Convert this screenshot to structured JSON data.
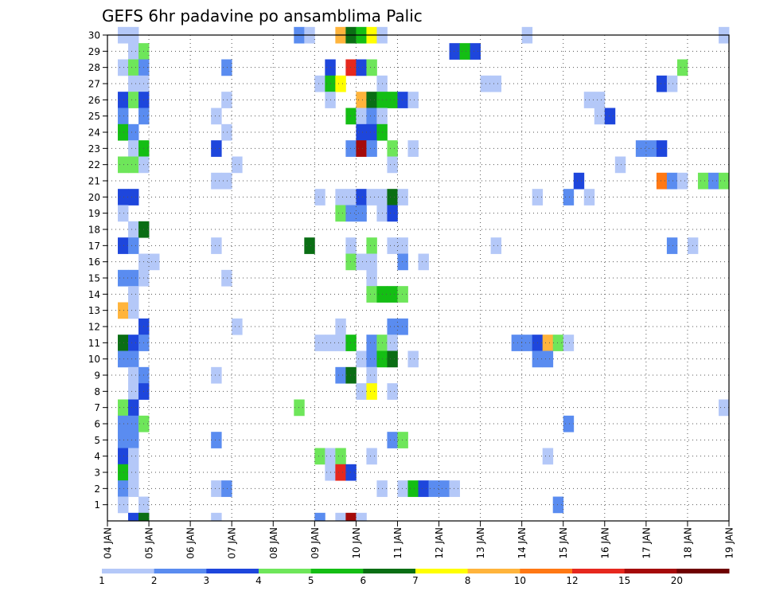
{
  "chart_data": {
    "type": "heatmap",
    "title": "GEFS 6hr padavine po ansamblima Palic",
    "xlabel": "",
    "ylabel": "",
    "x_tick_labels": [
      "04 JAN",
      "05 JAN",
      "06 JAN",
      "07 JAN",
      "08 JAN",
      "09 JAN",
      "10 JAN",
      "11 JAN",
      "12 JAN",
      "13 JAN",
      "14 JAN",
      "15 JAN",
      "16 JAN",
      "17 JAN",
      "18 JAN",
      "19 JAN"
    ],
    "y_tick_labels": [
      "1",
      "2",
      "3",
      "4",
      "5",
      "6",
      "7",
      "8",
      "9",
      "10",
      "11",
      "12",
      "13",
      "14",
      "15",
      "16",
      "17",
      "18",
      "19",
      "20",
      "21",
      "22",
      "23",
      "24",
      "25",
      "26",
      "27",
      "28",
      "29",
      "30"
    ],
    "ylim": [
      0,
      30
    ],
    "time_steps_per_day": 4,
    "grid": true,
    "colorbar": {
      "position": "bottom",
      "labels": [
        "1",
        "2",
        "3",
        "4",
        "5",
        "6",
        "7",
        "8",
        "10",
        "12",
        "15",
        "20"
      ],
      "colors": [
        "#b4c8f8",
        "#5a8cf0",
        "#1e46dc",
        "#6ee65a",
        "#14be14",
        "#0a6e14",
        "#ffff00",
        "#ffb43c",
        "#ff7814",
        "#e6281e",
        "#a50a0a",
        "#6e0000"
      ]
    },
    "cells": [
      {
        "member": 30,
        "step": 1,
        "value": 1.5
      },
      {
        "member": 30,
        "step": 2,
        "value": 1.5
      },
      {
        "member": 30,
        "step": 18,
        "value": 2.5
      },
      {
        "member": 30,
        "step": 19,
        "value": 1.5
      },
      {
        "member": 30,
        "step": 22,
        "value": 9
      },
      {
        "member": 30,
        "step": 23,
        "value": 6.5
      },
      {
        "member": 30,
        "step": 24,
        "value": 5.5
      },
      {
        "member": 30,
        "step": 25,
        "value": 7.5
      },
      {
        "member": 30,
        "step": 26,
        "value": 1.5
      },
      {
        "member": 30,
        "step": 40,
        "value": 1.5
      },
      {
        "member": 30,
        "step": 59,
        "value": 1.5
      },
      {
        "member": 29,
        "step": 2,
        "value": 1.5
      },
      {
        "member": 29,
        "step": 3,
        "value": 4.5
      },
      {
        "member": 29,
        "step": 33,
        "value": 3.5
      },
      {
        "member": 29,
        "step": 34,
        "value": 5.5
      },
      {
        "member": 29,
        "step": 35,
        "value": 3.5
      },
      {
        "member": 28,
        "step": 1,
        "value": 1.5
      },
      {
        "member": 28,
        "step": 2,
        "value": 4.5
      },
      {
        "member": 28,
        "step": 3,
        "value": 2.5
      },
      {
        "member": 28,
        "step": 11,
        "value": 2.5
      },
      {
        "member": 28,
        "step": 21,
        "value": 3.5
      },
      {
        "member": 28,
        "step": 23,
        "value": 13
      },
      {
        "member": 28,
        "step": 24,
        "value": 3.5
      },
      {
        "member": 28,
        "step": 25,
        "value": 4.5
      },
      {
        "member": 28,
        "step": 55,
        "value": 4.5
      },
      {
        "member": 27,
        "step": 2,
        "value": 1.5
      },
      {
        "member": 27,
        "step": 3,
        "value": 1.5
      },
      {
        "member": 27,
        "step": 20,
        "value": 1.5
      },
      {
        "member": 27,
        "step": 21,
        "value": 5.5
      },
      {
        "member": 27,
        "step": 22,
        "value": 7.5
      },
      {
        "member": 27,
        "step": 26,
        "value": 1.5
      },
      {
        "member": 27,
        "step": 36,
        "value": 1.5
      },
      {
        "member": 27,
        "step": 37,
        "value": 1.5
      },
      {
        "member": 27,
        "step": 53,
        "value": 3.5
      },
      {
        "member": 27,
        "step": 54,
        "value": 1.5
      },
      {
        "member": 26,
        "step": 1,
        "value": 3.5
      },
      {
        "member": 26,
        "step": 2,
        "value": 4.5
      },
      {
        "member": 26,
        "step": 3,
        "value": 3.5
      },
      {
        "member": 26,
        "step": 11,
        "value": 1.5
      },
      {
        "member": 26,
        "step": 21,
        "value": 1.5
      },
      {
        "member": 26,
        "step": 24,
        "value": 9
      },
      {
        "member": 26,
        "step": 25,
        "value": 6.5
      },
      {
        "member": 26,
        "step": 26,
        "value": 5.5
      },
      {
        "member": 26,
        "step": 27,
        "value": 5.5
      },
      {
        "member": 26,
        "step": 28,
        "value": 3.5
      },
      {
        "member": 26,
        "step": 29,
        "value": 1.5
      },
      {
        "member": 26,
        "step": 46,
        "value": 1.5
      },
      {
        "member": 26,
        "step": 47,
        "value": 1.5
      },
      {
        "member": 25,
        "step": 1,
        "value": 2.5
      },
      {
        "member": 25,
        "step": 3,
        "value": 2.5
      },
      {
        "member": 25,
        "step": 10,
        "value": 1.5
      },
      {
        "member": 25,
        "step": 23,
        "value": 5.5
      },
      {
        "member": 25,
        "step": 24,
        "value": 1.5
      },
      {
        "member": 25,
        "step": 25,
        "value": 2.5
      },
      {
        "member": 25,
        "step": 26,
        "value": 1.5
      },
      {
        "member": 25,
        "step": 47,
        "value": 1.5
      },
      {
        "member": 25,
        "step": 48,
        "value": 3.5
      },
      {
        "member": 24,
        "step": 1,
        "value": 5.5
      },
      {
        "member": 24,
        "step": 2,
        "value": 2.5
      },
      {
        "member": 24,
        "step": 11,
        "value": 1.5
      },
      {
        "member": 24,
        "step": 24,
        "value": 3.5
      },
      {
        "member": 24,
        "step": 25,
        "value": 3.5
      },
      {
        "member": 24,
        "step": 26,
        "value": 5.5
      },
      {
        "member": 23,
        "step": 2,
        "value": 1.5
      },
      {
        "member": 23,
        "step": 3,
        "value": 5.5
      },
      {
        "member": 23,
        "step": 10,
        "value": 3.5
      },
      {
        "member": 23,
        "step": 23,
        "value": 2.5
      },
      {
        "member": 23,
        "step": 24,
        "value": 17
      },
      {
        "member": 23,
        "step": 25,
        "value": 2.5
      },
      {
        "member": 23,
        "step": 27,
        "value": 4.5
      },
      {
        "member": 23,
        "step": 29,
        "value": 1.5
      },
      {
        "member": 23,
        "step": 51,
        "value": 2.5
      },
      {
        "member": 23,
        "step": 52,
        "value": 2.5
      },
      {
        "member": 23,
        "step": 53,
        "value": 3.5
      },
      {
        "member": 22,
        "step": 1,
        "value": 4.5
      },
      {
        "member": 22,
        "step": 2,
        "value": 4.5
      },
      {
        "member": 22,
        "step": 3,
        "value": 1.5
      },
      {
        "member": 22,
        "step": 12,
        "value": 1.5
      },
      {
        "member": 22,
        "step": 27,
        "value": 1.5
      },
      {
        "member": 22,
        "step": 49,
        "value": 1.5
      },
      {
        "member": 21,
        "step": 10,
        "value": 1.5
      },
      {
        "member": 21,
        "step": 11,
        "value": 1.5
      },
      {
        "member": 21,
        "step": 45,
        "value": 3.5
      },
      {
        "member": 21,
        "step": 53,
        "value": 11
      },
      {
        "member": 21,
        "step": 54,
        "value": 2.5
      },
      {
        "member": 21,
        "step": 55,
        "value": 1.5
      },
      {
        "member": 21,
        "step": 57,
        "value": 4.5
      },
      {
        "member": 21,
        "step": 58,
        "value": 2.5
      },
      {
        "member": 21,
        "step": 59,
        "value": 4.5
      },
      {
        "member": 20,
        "step": 1,
        "value": 3.5
      },
      {
        "member": 20,
        "step": 2,
        "value": 3.5
      },
      {
        "member": 20,
        "step": 20,
        "value": 1.5
      },
      {
        "member": 20,
        "step": 22,
        "value": 1.5
      },
      {
        "member": 20,
        "step": 23,
        "value": 1.5
      },
      {
        "member": 20,
        "step": 24,
        "value": 3.5
      },
      {
        "member": 20,
        "step": 25,
        "value": 1.5
      },
      {
        "member": 20,
        "step": 26,
        "value": 1.5
      },
      {
        "member": 20,
        "step": 27,
        "value": 6.5
      },
      {
        "member": 20,
        "step": 28,
        "value": 1.5
      },
      {
        "member": 20,
        "step": 41,
        "value": 1.5
      },
      {
        "member": 20,
        "step": 44,
        "value": 2.5
      },
      {
        "member": 20,
        "step": 46,
        "value": 1.5
      },
      {
        "member": 19,
        "step": 1,
        "value": 1.5
      },
      {
        "member": 19,
        "step": 22,
        "value": 4.5
      },
      {
        "member": 19,
        "step": 23,
        "value": 2.5
      },
      {
        "member": 19,
        "step": 24,
        "value": 2.5
      },
      {
        "member": 19,
        "step": 26,
        "value": 1.5
      },
      {
        "member": 19,
        "step": 27,
        "value": 3.5
      },
      {
        "member": 18,
        "step": 2,
        "value": 1.5
      },
      {
        "member": 18,
        "step": 3,
        "value": 6.5
      },
      {
        "member": 17,
        "step": 1,
        "value": 3.5
      },
      {
        "member": 17,
        "step": 2,
        "value": 2.5
      },
      {
        "member": 17,
        "step": 10,
        "value": 1.5
      },
      {
        "member": 17,
        "step": 19,
        "value": 6.5
      },
      {
        "member": 17,
        "step": 23,
        "value": 1.5
      },
      {
        "member": 17,
        "step": 25,
        "value": 4.5
      },
      {
        "member": 17,
        "step": 27,
        "value": 1.5
      },
      {
        "member": 17,
        "step": 28,
        "value": 1.5
      },
      {
        "member": 17,
        "step": 37,
        "value": 1.5
      },
      {
        "member": 17,
        "step": 54,
        "value": 2.5
      },
      {
        "member": 17,
        "step": 56,
        "value": 1.5
      },
      {
        "member": 16,
        "step": 3,
        "value": 1.5
      },
      {
        "member": 16,
        "step": 4,
        "value": 1.5
      },
      {
        "member": 16,
        "step": 23,
        "value": 4.5
      },
      {
        "member": 16,
        "step": 24,
        "value": 1.5
      },
      {
        "member": 16,
        "step": 25,
        "value": 1.5
      },
      {
        "member": 16,
        "step": 28,
        "value": 2.5
      },
      {
        "member": 16,
        "step": 30,
        "value": 1.5
      },
      {
        "member": 15,
        "step": 1,
        "value": 2.5
      },
      {
        "member": 15,
        "step": 2,
        "value": 2.5
      },
      {
        "member": 15,
        "step": 3,
        "value": 1.5
      },
      {
        "member": 15,
        "step": 11,
        "value": 1.5
      },
      {
        "member": 15,
        "step": 25,
        "value": 1.5
      },
      {
        "member": 14,
        "step": 2,
        "value": 1.5
      },
      {
        "member": 14,
        "step": 25,
        "value": 4.5
      },
      {
        "member": 14,
        "step": 26,
        "value": 5.5
      },
      {
        "member": 14,
        "step": 27,
        "value": 5.5
      },
      {
        "member": 14,
        "step": 28,
        "value": 4.5
      },
      {
        "member": 13,
        "step": 1,
        "value": 9
      },
      {
        "member": 13,
        "step": 2,
        "value": 1.5
      },
      {
        "member": 12,
        "step": 3,
        "value": 3.5
      },
      {
        "member": 12,
        "step": 12,
        "value": 1.5
      },
      {
        "member": 12,
        "step": 22,
        "value": 1.5
      },
      {
        "member": 12,
        "step": 27,
        "value": 2.5
      },
      {
        "member": 12,
        "step": 28,
        "value": 2.5
      },
      {
        "member": 11,
        "step": 1,
        "value": 6.5
      },
      {
        "member": 11,
        "step": 2,
        "value": 3.5
      },
      {
        "member": 11,
        "step": 3,
        "value": 2.5
      },
      {
        "member": 11,
        "step": 20,
        "value": 1.5
      },
      {
        "member": 11,
        "step": 21,
        "value": 1.5
      },
      {
        "member": 11,
        "step": 22,
        "value": 1.5
      },
      {
        "member": 11,
        "step": 23,
        "value": 5.5
      },
      {
        "member": 11,
        "step": 25,
        "value": 2.5
      },
      {
        "member": 11,
        "step": 26,
        "value": 4.5
      },
      {
        "member": 11,
        "step": 27,
        "value": 1.5
      },
      {
        "member": 11,
        "step": 39,
        "value": 2.5
      },
      {
        "member": 11,
        "step": 40,
        "value": 2.5
      },
      {
        "member": 11,
        "step": 41,
        "value": 3.5
      },
      {
        "member": 11,
        "step": 42,
        "value": 9
      },
      {
        "member": 11,
        "step": 43,
        "value": 4.5
      },
      {
        "member": 11,
        "step": 44,
        "value": 1.5
      },
      {
        "member": 10,
        "step": 1,
        "value": 2.5
      },
      {
        "member": 10,
        "step": 2,
        "value": 2.5
      },
      {
        "member": 10,
        "step": 24,
        "value": 1.5
      },
      {
        "member": 10,
        "step": 25,
        "value": 2.5
      },
      {
        "member": 10,
        "step": 26,
        "value": 5.5
      },
      {
        "member": 10,
        "step": 27,
        "value": 6.5
      },
      {
        "member": 10,
        "step": 29,
        "value": 1.5
      },
      {
        "member": 10,
        "step": 41,
        "value": 2.5
      },
      {
        "member": 10,
        "step": 42,
        "value": 2.5
      },
      {
        "member": 9,
        "step": 2,
        "value": 1.5
      },
      {
        "member": 9,
        "step": 3,
        "value": 2.5
      },
      {
        "member": 9,
        "step": 10,
        "value": 1.5
      },
      {
        "member": 9,
        "step": 22,
        "value": 2.5
      },
      {
        "member": 9,
        "step": 23,
        "value": 6.5
      },
      {
        "member": 9,
        "step": 25,
        "value": 1.5
      },
      {
        "member": 8,
        "step": 2,
        "value": 1.5
      },
      {
        "member": 8,
        "step": 3,
        "value": 3.5
      },
      {
        "member": 8,
        "step": 24,
        "value": 1.5
      },
      {
        "member": 8,
        "step": 25,
        "value": 7.5
      },
      {
        "member": 8,
        "step": 27,
        "value": 1.5
      },
      {
        "member": 7,
        "step": 1,
        "value": 4.5
      },
      {
        "member": 7,
        "step": 2,
        "value": 3.5
      },
      {
        "member": 7,
        "step": 18,
        "value": 4.5
      },
      {
        "member": 7,
        "step": 59,
        "value": 1.5
      },
      {
        "member": 6,
        "step": 1,
        "value": 2.5
      },
      {
        "member": 6,
        "step": 2,
        "value": 2.5
      },
      {
        "member": 6,
        "step": 3,
        "value": 4.5
      },
      {
        "member": 6,
        "step": 44,
        "value": 2.5
      },
      {
        "member": 5,
        "step": 1,
        "value": 2.5
      },
      {
        "member": 5,
        "step": 2,
        "value": 2.5
      },
      {
        "member": 5,
        "step": 10,
        "value": 2.5
      },
      {
        "member": 5,
        "step": 27,
        "value": 2.5
      },
      {
        "member": 5,
        "step": 28,
        "value": 4.5
      },
      {
        "member": 4,
        "step": 1,
        "value": 3.5
      },
      {
        "member": 4,
        "step": 2,
        "value": 1.5
      },
      {
        "member": 4,
        "step": 20,
        "value": 4.5
      },
      {
        "member": 4,
        "step": 21,
        "value": 1.5
      },
      {
        "member": 4,
        "step": 22,
        "value": 4.5
      },
      {
        "member": 4,
        "step": 25,
        "value": 1.5
      },
      {
        "member": 4,
        "step": 42,
        "value": 1.5
      },
      {
        "member": 3,
        "step": 1,
        "value": 5.5
      },
      {
        "member": 3,
        "step": 2,
        "value": 1.5
      },
      {
        "member": 3,
        "step": 21,
        "value": 1.5
      },
      {
        "member": 3,
        "step": 22,
        "value": 13
      },
      {
        "member": 3,
        "step": 23,
        "value": 3.5
      },
      {
        "member": 2,
        "step": 1,
        "value": 2.5
      },
      {
        "member": 2,
        "step": 2,
        "value": 1.5
      },
      {
        "member": 2,
        "step": 10,
        "value": 1.5
      },
      {
        "member": 2,
        "step": 11,
        "value": 2.5
      },
      {
        "member": 2,
        "step": 26,
        "value": 1.5
      },
      {
        "member": 2,
        "step": 28,
        "value": 1.5
      },
      {
        "member": 2,
        "step": 29,
        "value": 5.5
      },
      {
        "member": 2,
        "step": 30,
        "value": 3.5
      },
      {
        "member": 2,
        "step": 31,
        "value": 2.5
      },
      {
        "member": 2,
        "step": 32,
        "value": 2.5
      },
      {
        "member": 2,
        "step": 33,
        "value": 1.5
      },
      {
        "member": 1,
        "step": 1,
        "value": 1.5
      },
      {
        "member": 1,
        "step": 3,
        "value": 1.5
      },
      {
        "member": 1,
        "step": 43,
        "value": 2.5
      },
      {
        "member": 0,
        "step": 2,
        "value": 3.5
      },
      {
        "member": 0,
        "step": 3,
        "value": 6.5
      },
      {
        "member": 0,
        "step": 10,
        "value": 1.5
      },
      {
        "member": 0,
        "step": 20,
        "value": 2.5
      },
      {
        "member": 0,
        "step": 22,
        "value": 1.5
      },
      {
        "member": 0,
        "step": 23,
        "value": 17
      },
      {
        "member": 0,
        "step": 24,
        "value": 1.5
      }
    ]
  }
}
